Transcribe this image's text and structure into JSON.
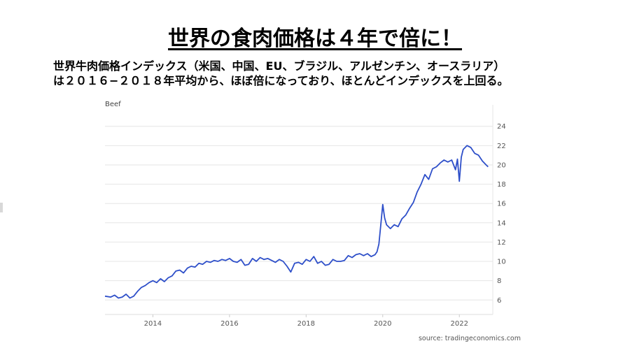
{
  "slide": {
    "title": "世界の食肉価格は４年で倍に！",
    "description_lines": [
      "世界牛肉価格インデックス（米国、中国、EU、ブラジル、アルゼンチン、オースラリア）",
      "は２０１６−２０１８年平均から、ほぼ倍になっており、ほとんどインデックスを上回る。"
    ]
  },
  "chart_data": {
    "type": "line",
    "series_label": "Beef",
    "source": "source: tradingeconomics.com",
    "xlim": [
      2012.75,
      2022.8
    ],
    "ylim": [
      4.5,
      25.5
    ],
    "x_ticks": [
      2014,
      2016,
      2018,
      2020,
      2022
    ],
    "y_ticks": [
      6,
      8,
      10,
      12,
      14,
      16,
      18,
      20,
      22,
      24
    ],
    "y_axis_side": "right",
    "grid": "horizontal",
    "line_color": "#2e4fc9",
    "series": [
      {
        "x": [
          2012.75,
          2012.9,
          2013.0,
          2013.1,
          2013.2,
          2013.3,
          2013.4,
          2013.5,
          2013.6,
          2013.7,
          2013.8,
          2013.9,
          2014.0,
          2014.1,
          2014.2,
          2014.3,
          2014.4,
          2014.5,
          2014.6,
          2014.7,
          2014.8,
          2014.9,
          2015.0,
          2015.1,
          2015.2,
          2015.3,
          2015.4,
          2015.5,
          2015.6,
          2015.7,
          2015.8,
          2015.9,
          2016.0,
          2016.1,
          2016.2,
          2016.3,
          2016.4,
          2016.5,
          2016.6,
          2016.7,
          2016.8,
          2016.9,
          2017.0,
          2017.1,
          2017.2,
          2017.3,
          2017.4,
          2017.5,
          2017.6,
          2017.7,
          2017.8,
          2017.9,
          2018.0,
          2018.1,
          2018.2,
          2018.3,
          2018.4,
          2018.5,
          2018.6,
          2018.7,
          2018.8,
          2018.9,
          2019.0,
          2019.1,
          2019.2,
          2019.3,
          2019.4,
          2019.5,
          2019.6,
          2019.7,
          2019.8,
          2019.85,
          2019.9,
          2019.95,
          2020.0,
          2020.05,
          2020.1,
          2020.2,
          2020.3,
          2020.4,
          2020.5,
          2020.6,
          2020.7,
          2020.8,
          2020.9,
          2021.0,
          2021.1,
          2021.2,
          2021.3,
          2021.4,
          2021.5,
          2021.6,
          2021.7,
          2021.8,
          2021.9,
          2021.95,
          2022.0,
          2022.05,
          2022.1,
          2022.2,
          2022.3,
          2022.4,
          2022.5,
          2022.6,
          2022.7,
          2022.75
        ],
        "y": [
          6.4,
          6.3,
          6.5,
          6.2,
          6.3,
          6.6,
          6.2,
          6.4,
          6.9,
          7.3,
          7.5,
          7.8,
          8.0,
          7.8,
          8.2,
          7.9,
          8.3,
          8.5,
          9.0,
          9.1,
          8.8,
          9.3,
          9.5,
          9.4,
          9.8,
          9.7,
          10.0,
          9.9,
          10.1,
          10.0,
          10.2,
          10.1,
          10.3,
          10.0,
          9.9,
          10.2,
          9.6,
          9.7,
          10.3,
          10.0,
          10.4,
          10.2,
          10.3,
          10.1,
          9.9,
          10.2,
          10.0,
          9.5,
          8.9,
          9.8,
          9.9,
          9.7,
          10.2,
          10.0,
          10.5,
          9.8,
          10.0,
          9.6,
          9.7,
          10.2,
          10.0,
          10.0,
          10.1,
          10.6,
          10.4,
          10.7,
          10.8,
          10.6,
          10.8,
          10.5,
          10.7,
          11.0,
          11.8,
          13.8,
          15.9,
          14.5,
          13.8,
          13.4,
          13.8,
          13.6,
          14.4,
          14.8,
          15.5,
          16.1,
          17.2,
          18.0,
          19.0,
          18.5,
          19.6,
          19.8,
          20.2,
          20.5,
          20.3,
          20.5,
          19.5,
          20.6,
          18.3,
          20.8,
          21.6,
          22.0,
          21.8,
          21.2,
          21.0,
          20.4,
          20.0,
          19.8
        ]
      }
    ]
  }
}
